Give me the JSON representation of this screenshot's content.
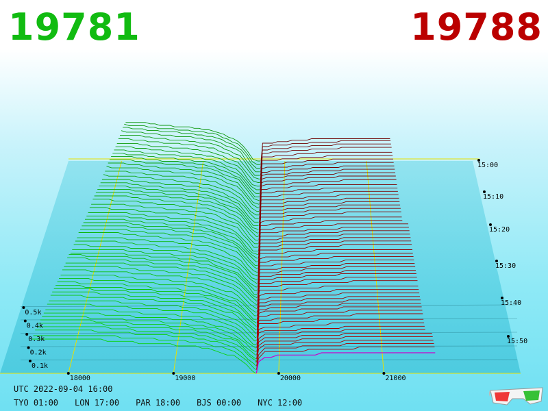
{
  "header": {
    "bid": "19781",
    "ask": "19788",
    "bid_color": "#11bb11",
    "ask_color": "#bb0000"
  },
  "footer": {
    "utc": "UTC 2022-09-04 16:00",
    "zones": [
      {
        "label": "TYO 01:00"
      },
      {
        "label": "LON 17:00"
      },
      {
        "label": "PAR 18:00"
      },
      {
        "label": "BJS 00:00"
      },
      {
        "label": "NYC 12:00"
      }
    ]
  },
  "icons": {
    "glasses": "3d-glasses-icon"
  },
  "chart_data": {
    "type": "3d-depth",
    "x_axis": {
      "ticks": [
        18000,
        19000,
        20000,
        21000
      ],
      "labels": [
        "18000",
        "19000",
        "20000",
        "21000"
      ]
    },
    "y_axis": {
      "ticks": [
        0.1,
        0.2,
        0.3,
        0.4,
        0.5
      ],
      "labels": [
        "0.1k",
        "0.2k",
        "0.3k",
        "0.4k",
        "0.5k"
      ]
    },
    "time_axis": {
      "labels": [
        "15:00",
        "15:10",
        "15:20",
        "15:30",
        "15:40",
        "15:50"
      ]
    },
    "colors": {
      "bid": "#11bb11",
      "ask": "#aa0000",
      "grid": "#e8e000",
      "latest_ask": "#cc00cc"
    },
    "bid_profile": [
      [
        18000,
        0.45
      ],
      [
        18350,
        0.44
      ],
      [
        18600,
        0.41
      ],
      [
        19000,
        0.38
      ],
      [
        19300,
        0.34
      ],
      [
        19600,
        0.22
      ],
      [
        19781,
        0.0
      ]
    ],
    "ask_profile": [
      [
        19788,
        0.0
      ],
      [
        19820,
        0.2
      ],
      [
        20000,
        0.21
      ],
      [
        20400,
        0.24
      ],
      [
        20800,
        0.26
      ],
      [
        21300,
        0.26
      ]
    ],
    "snapshots": 60
  }
}
